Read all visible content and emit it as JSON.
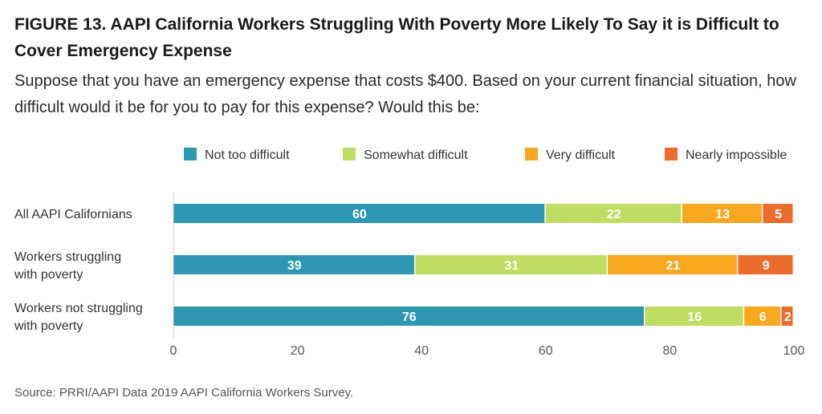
{
  "figure": {
    "title": "FIGURE 13. AAPI California Workers Struggling With Poverty More Likely To Say it is Difficult to Cover Emergency Expense",
    "subtitle": "Suppose that you have an emergency expense that costs $400. Based on your current financial situation, how difficult would it be for you to pay for this expense? Would this be:",
    "source": "Source: PRRI/AAPI Data 2019 AAPI California Workers Survey."
  },
  "chart_data": {
    "type": "bar",
    "orientation": "horizontal",
    "stacked": true,
    "categories": [
      [
        "All AAPI Californians"
      ],
      [
        "Workers struggling",
        "with poverty"
      ],
      [
        "Workers not struggling",
        "with poverty"
      ]
    ],
    "series": [
      {
        "name": "Not too difficult",
        "color": "#2e97b2",
        "values": [
          60,
          39,
          76
        ]
      },
      {
        "name": "Somewhat difficult",
        "color": "#bfdc63",
        "values": [
          22,
          31,
          16
        ]
      },
      {
        "name": "Very difficult",
        "color": "#f7a81e",
        "values": [
          13,
          21,
          6
        ]
      },
      {
        "name": "Nearly impossible",
        "color": "#ec6b2d",
        "values": [
          5,
          9,
          2
        ]
      }
    ],
    "xlim": [
      0,
      100
    ],
    "xticks": [
      0,
      20,
      40,
      60,
      80,
      100
    ],
    "legend_position": "top-right",
    "grid": false
  }
}
